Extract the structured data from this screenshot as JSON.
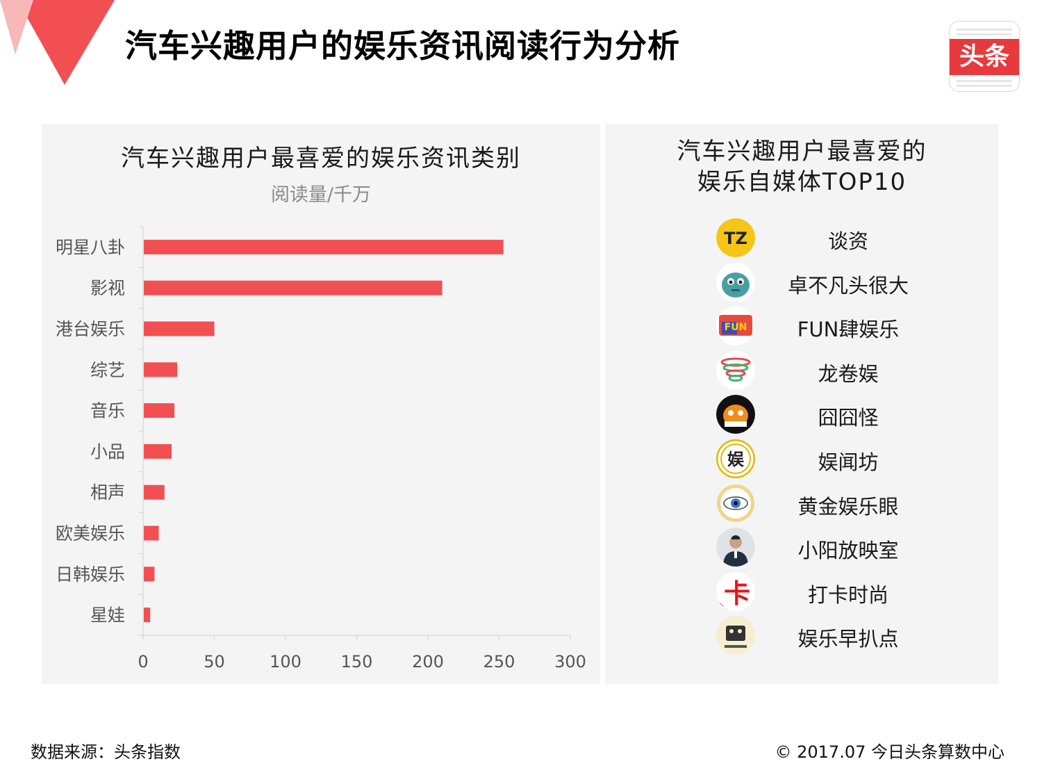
{
  "header": {
    "title": "汽车兴趣用户的娱乐资讯阅读行为分析",
    "logo_text": "头条"
  },
  "colors": {
    "accent": "#f24f52",
    "panel": "#f4f4f4"
  },
  "chart_data": {
    "type": "bar",
    "orientation": "horizontal",
    "title": "汽车兴趣用户最喜爱的娱乐资讯类别",
    "subtitle": "阅读量/千万",
    "categories": [
      "明星八卦",
      "影视",
      "港台娱乐",
      "综艺",
      "音乐",
      "小品",
      "相声",
      "欧美娱乐",
      "日韩娱乐",
      "星娃"
    ],
    "values": [
      253,
      210,
      50,
      24,
      22,
      20,
      15,
      11,
      8,
      5
    ],
    "xlim": [
      0,
      300
    ],
    "xticks": [
      "0",
      "50",
      "100",
      "150",
      "200",
      "250",
      "300"
    ],
    "grid": false,
    "color": "#f24f52"
  },
  "media": {
    "title_line1": "汽车兴趣用户最喜爱的",
    "title_line2": "娱乐自媒体TOP10",
    "items": [
      {
        "name": "谈资",
        "icon": "tanzi-logo-icon",
        "icon_text": "TZ"
      },
      {
        "name": "卓不凡头很大",
        "icon": "blue-monster-icon",
        "icon_text": ""
      },
      {
        "name": "FUN肆娱乐",
        "icon": "fun-si-logo-icon",
        "icon_text": "FUN"
      },
      {
        "name": "龙卷娱",
        "icon": "tornado-logo-icon",
        "icon_text": ""
      },
      {
        "name": "囧囧怪",
        "icon": "jiongjiong-monster-icon",
        "icon_text": ""
      },
      {
        "name": "娱闻坊",
        "icon": "yuwenfang-logo-icon",
        "icon_text": "娱"
      },
      {
        "name": "黄金娱乐眼",
        "icon": "golden-eye-icon",
        "icon_text": ""
      },
      {
        "name": "小阳放映室",
        "icon": "person-avatar-icon",
        "icon_text": ""
      },
      {
        "name": "打卡时尚",
        "icon": "daka-logo-icon",
        "icon_text": "卡"
      },
      {
        "name": "娱乐早扒点",
        "icon": "yule-zaobadian-logo-icon",
        "icon_text": ""
      }
    ]
  },
  "footer": {
    "source": "数据来源：头条指数",
    "copyright": "© 2017.07 今日头条算数中心"
  }
}
